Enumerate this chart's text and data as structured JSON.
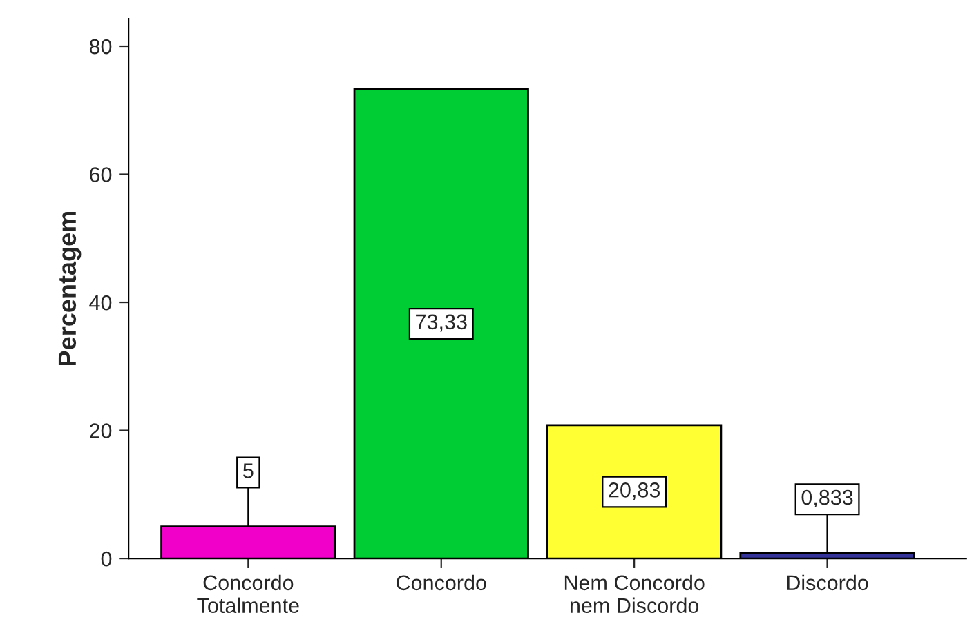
{
  "chart_data": {
    "type": "bar",
    "ylabel": "Percentagem",
    "categories": [
      "Concordo\nTotalmente",
      "Concordo",
      "Nem Concordo\nnem Discordo",
      "Discordo"
    ],
    "values": [
      5,
      73.33,
      20.83,
      0.833
    ],
    "value_labels": [
      "5",
      "73,33",
      "20,83",
      "0,833"
    ],
    "colors": [
      "#f000c8",
      "#00cc33",
      "#ffff33",
      "#333399"
    ],
    "ylim": [
      0,
      84.3
    ],
    "yticks": [
      0,
      20,
      40,
      60,
      80
    ],
    "grid": false,
    "legend": false
  }
}
